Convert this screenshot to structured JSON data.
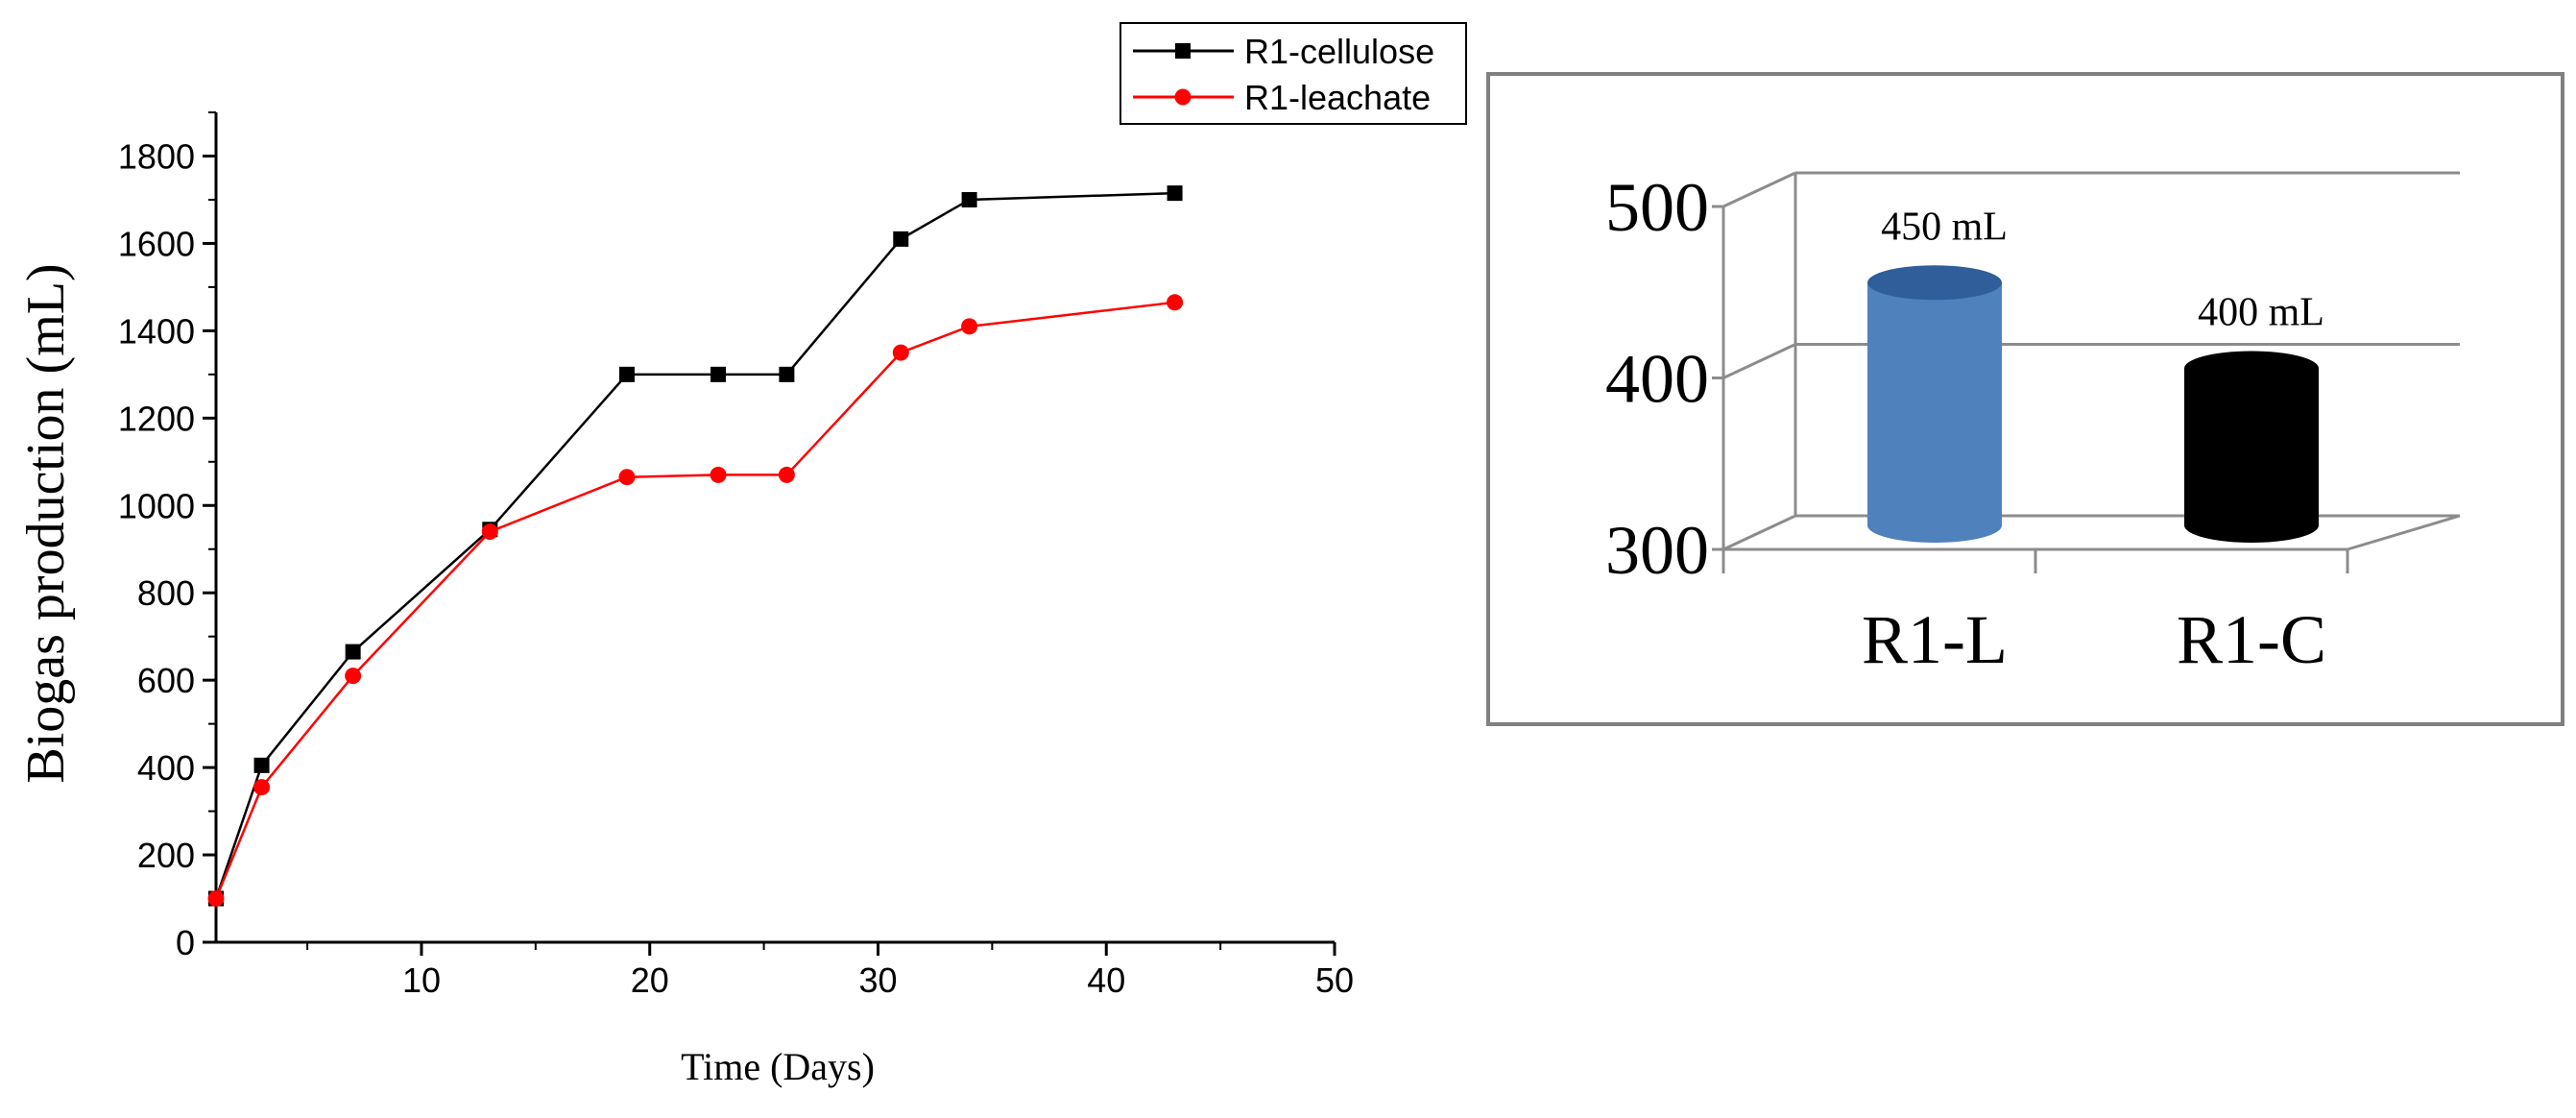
{
  "line_chart_y_label": "Biogas production (mL)",
  "line_chart_x_label": "Time (Days)",
  "bar_chart_value_labels": [
    "450 mL",
    "400 mL"
  ],
  "colors": {
    "R1-cellulose": "#000000",
    "R1-leachate": "#ff0000",
    "R1-L": "#4f81bd",
    "R1-C": "#000000",
    "frame": "#808080",
    "grid": "#8c8c8c"
  },
  "chart_data": [
    {
      "type": "line",
      "xlabel": "Time (Days)",
      "ylabel": "Biogas production (mL)",
      "xlim": [
        1,
        50
      ],
      "ylim": [
        0,
        1900
      ],
      "x_ticks": [
        10,
        20,
        30,
        40,
        50
      ],
      "y_ticks": [
        0,
        200,
        400,
        600,
        800,
        1000,
        1200,
        1400,
        1600,
        1800
      ],
      "grid": false,
      "legend_position": "top-right, outside plot area",
      "series": [
        {
          "name": "R1-cellulose",
          "marker": "square",
          "x": [
            1,
            3,
            7,
            13,
            19,
            23,
            26,
            31,
            34,
            43
          ],
          "y": [
            100,
            405,
            665,
            945,
            1300,
            1300,
            1300,
            1610,
            1700,
            1715
          ]
        },
        {
          "name": "R1-leachate",
          "marker": "circle",
          "x": [
            1,
            3,
            7,
            13,
            19,
            23,
            26,
            31,
            34,
            43
          ],
          "y": [
            100,
            355,
            610,
            940,
            1065,
            1070,
            1070,
            1350,
            1410,
            1465
          ]
        }
      ]
    },
    {
      "type": "bar",
      "style": "3d-cylinder",
      "categories": [
        "R1-L",
        "R1-C"
      ],
      "values": [
        450,
        400
      ],
      "value_labels": [
        "450 mL",
        "400 mL"
      ],
      "ylim": [
        300,
        500
      ],
      "y_ticks": [
        300,
        400,
        500
      ],
      "grid": true
    }
  ]
}
